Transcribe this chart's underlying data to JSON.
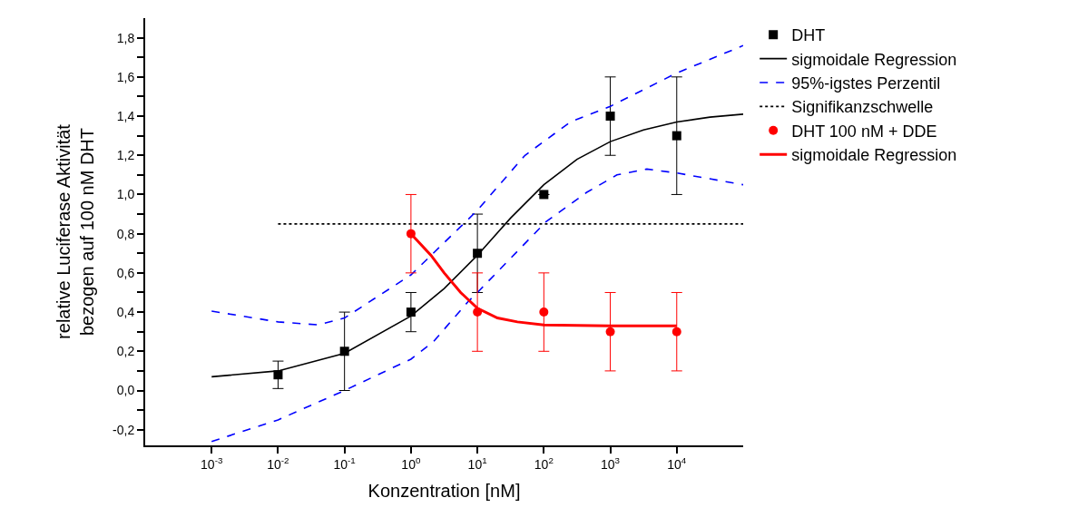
{
  "chart_data": {
    "type": "scatter",
    "xlabel": "Konzentration [nM]",
    "ylabel": "relative Luciferase Aktivität\nbezogen auf 100 nM DHT",
    "log": "x",
    "xlim": [
      0.0001,
      100000
    ],
    "xticks": [
      {
        "value": 0.001,
        "label": "10$^{-3}$"
      },
      {
        "value": 0.01,
        "label": "10$^{-2}$"
      },
      {
        "value": 0.1,
        "label": "10$^{-1}$"
      },
      {
        "value": 1,
        "label": "10$^{0}$"
      },
      {
        "value": 10,
        "label": "10$^{1}$"
      },
      {
        "value": 100,
        "label": "10$^{2}$"
      },
      {
        "value": 1000,
        "label": "10$^{3}$"
      },
      {
        "value": 10000,
        "label": "10$^{4}$"
      }
    ],
    "ylim": [
      -0.28,
      1.9
    ],
    "yticks": [
      {
        "value": -0.2,
        "label": "-0,2"
      },
      {
        "value": -0.1,
        "label": null
      },
      {
        "value": 0,
        "label": "0,0"
      },
      {
        "value": 0.1,
        "label": null
      },
      {
        "value": 0.2,
        "label": "0,2"
      },
      {
        "value": 0.3,
        "label": null
      },
      {
        "value": 0.4,
        "label": "0,4"
      },
      {
        "value": 0.5,
        "label": null
      },
      {
        "value": 0.6,
        "label": "0,6"
      },
      {
        "value": 0.7,
        "label": null
      },
      {
        "value": 0.8,
        "label": "0,8"
      },
      {
        "value": 0.9,
        "label": null
      },
      {
        "value": 1.0,
        "label": "1,0"
      },
      {
        "value": 1.1,
        "label": null
      },
      {
        "value": 1.2,
        "label": "1,2"
      },
      {
        "value": 1.3,
        "label": null
      },
      {
        "value": 1.4,
        "label": "1,4"
      },
      {
        "value": 1.5,
        "label": null
      },
      {
        "value": 1.6,
        "label": "1,6"
      },
      {
        "value": 1.7,
        "label": null
      },
      {
        "value": 1.8,
        "label": "1,8"
      }
    ],
    "grid": false,
    "legend": "top right",
    "series": [
      {
        "name": "DHT",
        "marker": "square",
        "color": "#000000",
        "x": [
          0.01,
          0.1,
          1,
          10,
          100,
          1000,
          10000
        ],
        "values": [
          0.08,
          0.2,
          0.4,
          0.7,
          1.0,
          1.4,
          1.3
        ],
        "errors": [
          [
            0.01,
            0.15
          ],
          0.2,
          0.1,
          0.2,
          null,
          0.2,
          0.3
        ]
      },
      {
        "name": "sigmoidale Regression",
        "type": "line",
        "marker": "none",
        "line_style": "solid",
        "color": "#000000",
        "x": [
          0.001,
          0.01,
          0.1,
          1,
          3.16,
          10,
          31.6,
          100,
          316,
          1000,
          3162,
          10000,
          31623,
          100000
        ],
        "values": [
          0.07,
          0.1,
          0.19,
          0.38,
          0.52,
          0.69,
          0.88,
          1.05,
          1.18,
          1.27,
          1.33,
          1.37,
          1.395,
          1.41
        ]
      },
      {
        "name": "95%-igstes Perzentil",
        "type": "line",
        "marker": "none",
        "line_style": "dashed",
        "color": "#0000ff",
        "x": [
          0.001,
          0.01,
          0.04,
          0.1,
          1,
          7.1,
          10,
          52,
          251,
          1000,
          10000,
          100000
        ],
        "values": [
          0.405,
          0.35,
          0.335,
          0.37,
          0.59,
          0.87,
          0.92,
          1.2,
          1.37,
          1.45,
          1.62,
          1.76
        ]
      },
      {
        "type": "line",
        "marker": "none",
        "line_style": "dashed",
        "color": "#0000ff",
        "x": [
          0.001,
          0.01,
          0.1,
          1,
          2.19,
          7.1,
          10,
          107,
          437,
          1259,
          3548,
          10000,
          100000
        ],
        "values": [
          -0.26,
          -0.15,
          0.0,
          0.16,
          0.25,
          0.45,
          0.5,
          0.86,
          1.01,
          1.1,
          1.13,
          1.11,
          1.05
        ]
      },
      {
        "name": "Signifikanzschwelle",
        "type": "line",
        "marker": "none",
        "line_style": "dotted",
        "color": "#000000",
        "x": [
          0.01,
          100000
        ],
        "values": [
          0.85,
          0.85
        ]
      },
      {
        "name": "DHT 100 nM + DDE",
        "marker": "circle",
        "color": "#ff0000",
        "x": [
          1,
          10,
          100,
          1000,
          10000
        ],
        "values": [
          0.8,
          0.4,
          0.4,
          0.3,
          0.3
        ],
        "errors": [
          0.2,
          0.2,
          0.2,
          0.2,
          0.2
        ]
      },
      {
        "name": "sigmoidale Regression",
        "type": "line",
        "marker": "none",
        "line_style": "solid",
        "color": "#ff0000",
        "x": [
          1,
          2,
          3.16,
          5.6,
          10,
          20,
          40,
          100,
          1000,
          10000
        ],
        "values": [
          0.8,
          0.69,
          0.6,
          0.5,
          0.42,
          0.37,
          0.35,
          0.335,
          0.33,
          0.33
        ]
      }
    ]
  }
}
